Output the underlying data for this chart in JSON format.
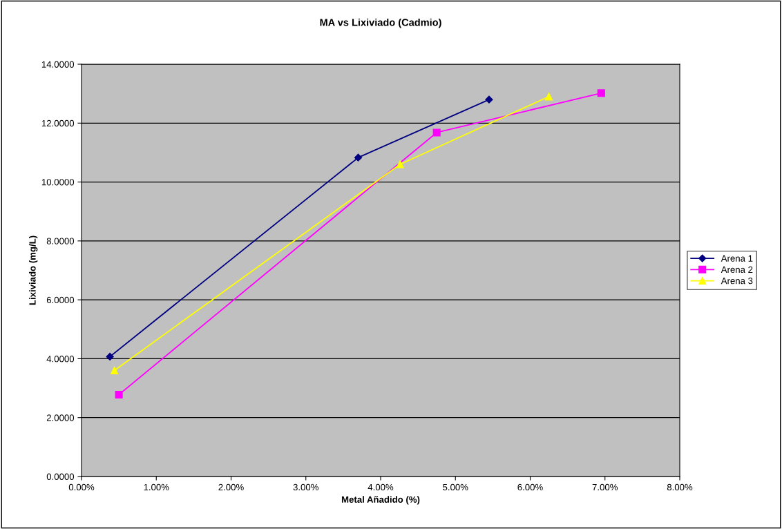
{
  "chart_data": {
    "type": "line",
    "title": "MA vs Lixiviado (Cadmio)",
    "xlabel": "Metal Añadido (%)",
    "ylabel": "Lixiviado (mg/L)",
    "xlim": [
      0,
      8
    ],
    "ylim": [
      0,
      14
    ],
    "xticks": [
      {
        "value": 0,
        "label": "0.00%"
      },
      {
        "value": 1,
        "label": "1.00%"
      },
      {
        "value": 2,
        "label": "2.00%"
      },
      {
        "value": 3,
        "label": "3.00%"
      },
      {
        "value": 4,
        "label": "4.00%"
      },
      {
        "value": 5,
        "label": "5.00%"
      },
      {
        "value": 6,
        "label": "6.00%"
      },
      {
        "value": 7,
        "label": "7.00%"
      },
      {
        "value": 8,
        "label": "8.00%"
      }
    ],
    "yticks": [
      {
        "value": 0,
        "label": "0.0000"
      },
      {
        "value": 2,
        "label": "2.0000"
      },
      {
        "value": 4,
        "label": "4.0000"
      },
      {
        "value": 6,
        "label": "6.0000"
      },
      {
        "value": 8,
        "label": "8.0000"
      },
      {
        "value": 10,
        "label": "10.0000"
      },
      {
        "value": 12,
        "label": "12.0000"
      },
      {
        "value": 14,
        "label": "14.0000"
      }
    ],
    "grid": "y",
    "legend": "right",
    "series": [
      {
        "name": "Arena 1",
        "color": "#000080",
        "marker": "diamond",
        "x": [
          0.38,
          3.7,
          5.45
        ],
        "values": [
          4.07,
          10.83,
          12.8
        ]
      },
      {
        "name": "Arena 2",
        "color": "#ff00ff",
        "marker": "square",
        "x": [
          0.5,
          4.75,
          6.95
        ],
        "values": [
          2.78,
          11.68,
          13.02
        ]
      },
      {
        "name": "Arena 3",
        "color": "#ffff00",
        "marker": "triangle",
        "x": [
          0.44,
          4.26,
          6.25
        ],
        "values": [
          3.6,
          10.6,
          12.9
        ]
      }
    ]
  }
}
